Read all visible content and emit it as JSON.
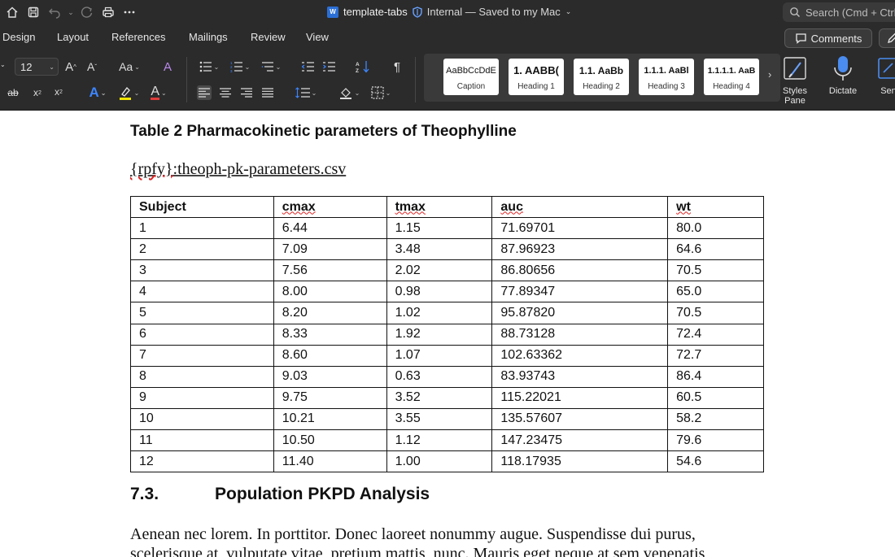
{
  "titlebar": {
    "doc_name": "template-tabs",
    "save_status": "Internal — Saved to my Mac",
    "search_placeholder": "Search (Cmd + Ctrl"
  },
  "menu": {
    "tabs": [
      "Design",
      "Layout",
      "References",
      "Mailings",
      "Review",
      "View"
    ],
    "comments_label": "Comments"
  },
  "ribbon": {
    "font_size": "12",
    "styles": [
      {
        "sample": "AaBbCcDdE",
        "name": "Caption"
      },
      {
        "sample": "1. AABB(",
        "name": "Heading 1"
      },
      {
        "sample": "1.1. AaBb",
        "name": "Heading 2"
      },
      {
        "sample": "1.1.1. AaBl",
        "name": "Heading 3"
      },
      {
        "sample": "1.1.1.1. AaB",
        "name": "Heading 4"
      }
    ],
    "styles_pane_label": "Styles Pane",
    "dictate_label": "Dictate",
    "sensitivity_label": "Sen"
  },
  "document": {
    "table_title": "Table 2 Pharmacokinetic parameters of Theophylline",
    "file_ref_prefix": "{rpfy}",
    "file_ref_suffix": ":theoph-pk-parameters.csv",
    "table": {
      "headers": [
        "Subject",
        "cmax",
        "tmax",
        "auc",
        "wt"
      ],
      "rows": [
        [
          "1",
          "6.44",
          "1.15",
          "71.69701",
          "80.0"
        ],
        [
          "2",
          "7.09",
          "3.48",
          "87.96923",
          "64.6"
        ],
        [
          "3",
          "7.56",
          "2.02",
          "86.80656",
          "70.5"
        ],
        [
          "4",
          "8.00",
          "0.98",
          "77.89347",
          "65.0"
        ],
        [
          "5",
          "8.20",
          "1.02",
          "95.87820",
          "70.5"
        ],
        [
          "6",
          "8.33",
          "1.92",
          "88.73128",
          "72.4"
        ],
        [
          "7",
          "8.60",
          "1.07",
          "102.63362",
          "72.7"
        ],
        [
          "8",
          "9.03",
          "0.63",
          "83.93743",
          "86.4"
        ],
        [
          "9",
          "9.75",
          "3.52",
          "115.22021",
          "60.5"
        ],
        [
          "10",
          "10.21",
          "3.55",
          "135.57607",
          "58.2"
        ],
        [
          "11",
          "10.50",
          "1.12",
          "147.23475",
          "79.6"
        ],
        [
          "12",
          "11.40",
          "1.00",
          "118.17935",
          "54.6"
        ]
      ]
    },
    "section_number": "7.3.",
    "section_title": "Population PKPD Analysis",
    "paragraph": "Aenean nec lorem. In porttitor. Donec laoreet nonummy augue. Suspendisse dui purus, scelerisque at, vulputate vitae, pretium mattis, nunc. Mauris eget neque at sem venenatis"
  }
}
